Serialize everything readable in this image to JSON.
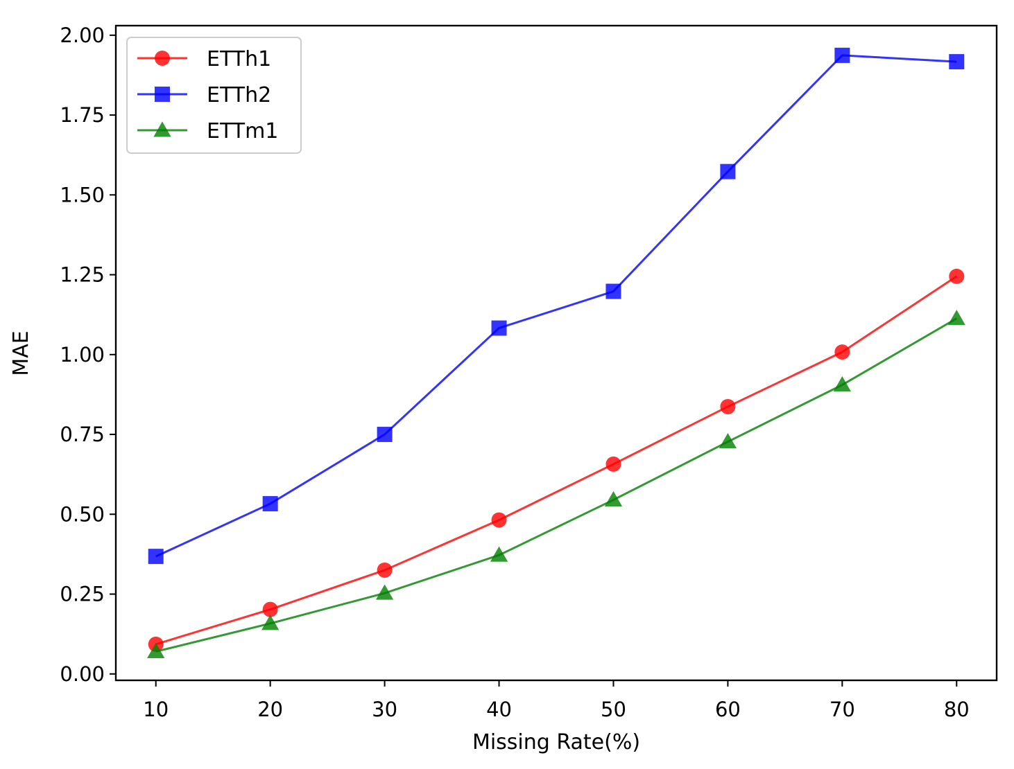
{
  "chart_data": {
    "type": "line",
    "title": "",
    "xlabel": "Missing Rate(%)",
    "ylabel": "MAE",
    "x": [
      10,
      20,
      30,
      40,
      50,
      60,
      70,
      80
    ],
    "xticks": [
      "10",
      "20",
      "30",
      "40",
      "50",
      "60",
      "70",
      "80"
    ],
    "yticks": [
      "0.00",
      "0.25",
      "0.50",
      "0.75",
      "1.00",
      "1.25",
      "1.50",
      "1.75",
      "2.00"
    ],
    "xlim": [
      6.5,
      83.5
    ],
    "ylim": [
      -0.02,
      2.03
    ],
    "grid": false,
    "legend_position": "upper-left",
    "series": [
      {
        "name": "ETTh1",
        "color": "#ff0000",
        "marker": "circle",
        "values": [
          0.093,
          0.202,
          0.325,
          0.482,
          0.657,
          0.837,
          1.008,
          1.245
        ]
      },
      {
        "name": "ETTh2",
        "color": "#0000ff",
        "marker": "square",
        "values": [
          0.368,
          0.533,
          0.75,
          1.083,
          1.198,
          1.573,
          1.937,
          1.917
        ]
      },
      {
        "name": "ETTm1",
        "color": "#008000",
        "marker": "triangle",
        "values": [
          0.07,
          0.158,
          0.253,
          0.372,
          0.545,
          0.727,
          0.905,
          1.113
        ]
      }
    ]
  }
}
